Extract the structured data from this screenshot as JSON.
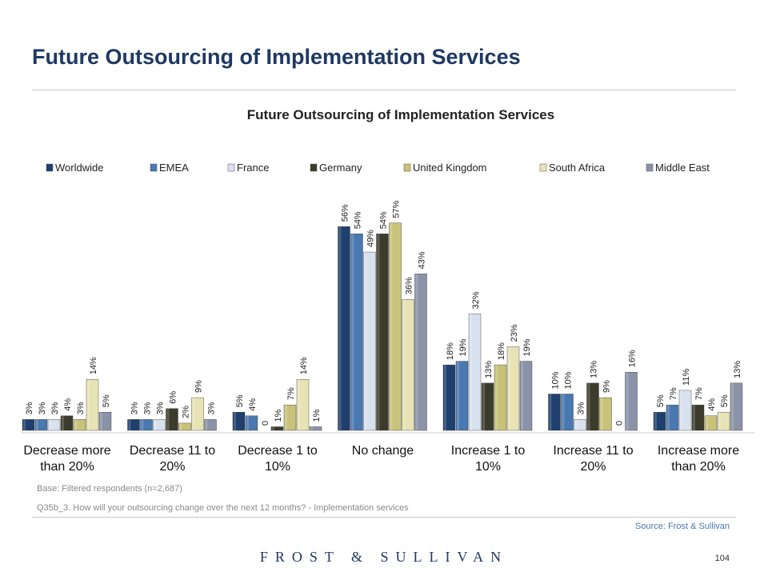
{
  "page": {
    "title": "Future Outsourcing of Implementation Services",
    "base_note": "Base: Filtered respondents (n=2,687)",
    "question_note": "Q35b_3. How will your outsourcing change over the next 12 months? - Implementation services",
    "source": "Source: Frost & Sullivan",
    "logo_text": "FROST & SULLIVAN",
    "page_number": "104"
  },
  "colors": {
    "title": "#1f3864",
    "series": [
      "#1f3f6e",
      "#4a78b0",
      "#d8e1ee",
      "#3c3c2c",
      "#c9c27a",
      "#e7e3b5",
      "#8a93a8"
    ]
  },
  "chart_data": {
    "type": "bar",
    "title": "Future Outsourcing of Implementation Services",
    "legend_position": "top",
    "grid": false,
    "ylim": [
      0,
      60
    ],
    "categories": [
      [
        "Decrease more",
        "than 20%"
      ],
      [
        "Decrease 11 to",
        "20%"
      ],
      [
        "Decrease 1 to",
        "10%"
      ],
      [
        "No change"
      ],
      [
        "Increase 1 to",
        "10%"
      ],
      [
        "Increase 11 to",
        "20%"
      ],
      [
        "Increase more",
        "than 20%"
      ]
    ],
    "series": [
      {
        "name": "Worldwide",
        "values": [
          3,
          3,
          5,
          56,
          18,
          10,
          5
        ],
        "labels": [
          "3%",
          "3%",
          "5%",
          "56%",
          "18%",
          "10%",
          "5%"
        ]
      },
      {
        "name": "EMEA",
        "values": [
          3,
          3,
          4,
          54,
          19,
          10,
          7
        ],
        "labels": [
          "3%",
          "3%",
          "4%",
          "54%",
          "19%",
          "10%",
          "7%"
        ]
      },
      {
        "name": "France",
        "values": [
          3,
          3,
          0,
          49,
          32,
          3,
          11
        ],
        "labels": [
          "3%",
          "3%",
          "0",
          "49%",
          "32%",
          "3%",
          "11%"
        ]
      },
      {
        "name": "Germany",
        "values": [
          4,
          6,
          1,
          54,
          13,
          13,
          7
        ],
        "labels": [
          "4%",
          "6%",
          "1%",
          "54%",
          "13%",
          "13%",
          "7%"
        ]
      },
      {
        "name": "United Kingdom",
        "values": [
          3,
          2,
          7,
          57,
          18,
          9,
          4
        ],
        "labels": [
          "3%",
          "2%",
          "7%",
          "57%",
          "18%",
          "9%",
          "4%"
        ]
      },
      {
        "name": "South Africa",
        "values": [
          14,
          9,
          14,
          36,
          23,
          0,
          5
        ],
        "labels": [
          "14%",
          "9%",
          "14%",
          "36%",
          "23%",
          "0",
          "5%"
        ]
      },
      {
        "name": "Middle East",
        "values": [
          5,
          3,
          1,
          43,
          19,
          16,
          13
        ],
        "labels": [
          "5%",
          "3%",
          "1%",
          "43%",
          "19%",
          "16%",
          "13%"
        ]
      }
    ]
  }
}
